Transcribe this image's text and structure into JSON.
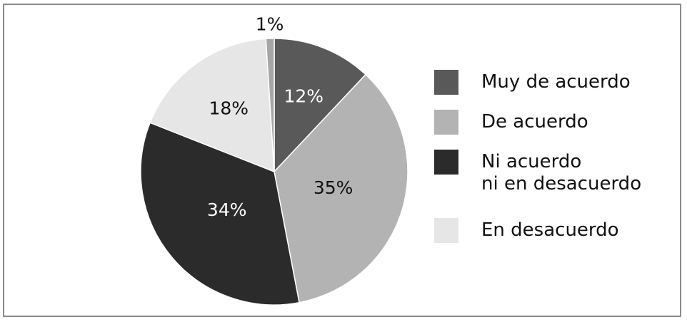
{
  "chart_data": {
    "type": "pie",
    "categories": [
      "Muy de acuerdo",
      "De acuerdo",
      "Ni acuerdo\nni en desacuerdo",
      "En desacuerdo",
      ""
    ],
    "values": [
      12,
      35,
      34,
      18,
      1
    ],
    "data_labels": [
      "12%",
      "35%",
      "34%",
      "18%",
      "1%"
    ],
    "colors": [
      "#595959",
      "#b3b3b3",
      "#2b2b2b",
      "#e6e6e6",
      "#a6a6a6"
    ],
    "label_colors": [
      "#ffffff",
      "#111111",
      "#ffffff",
      "#111111",
      "#111111"
    ],
    "legend_position": "right",
    "title": ""
  },
  "legend": {
    "items": [
      {
        "label": "Muy de acuerdo",
        "color": "#595959"
      },
      {
        "label": "De acuerdo",
        "color": "#b3b3b3"
      },
      {
        "label": "Ni acuerdo\nni en desacuerdo",
        "color": "#2b2b2b"
      },
      {
        "label": "En desacuerdo",
        "color": "#e6e6e6"
      }
    ]
  }
}
